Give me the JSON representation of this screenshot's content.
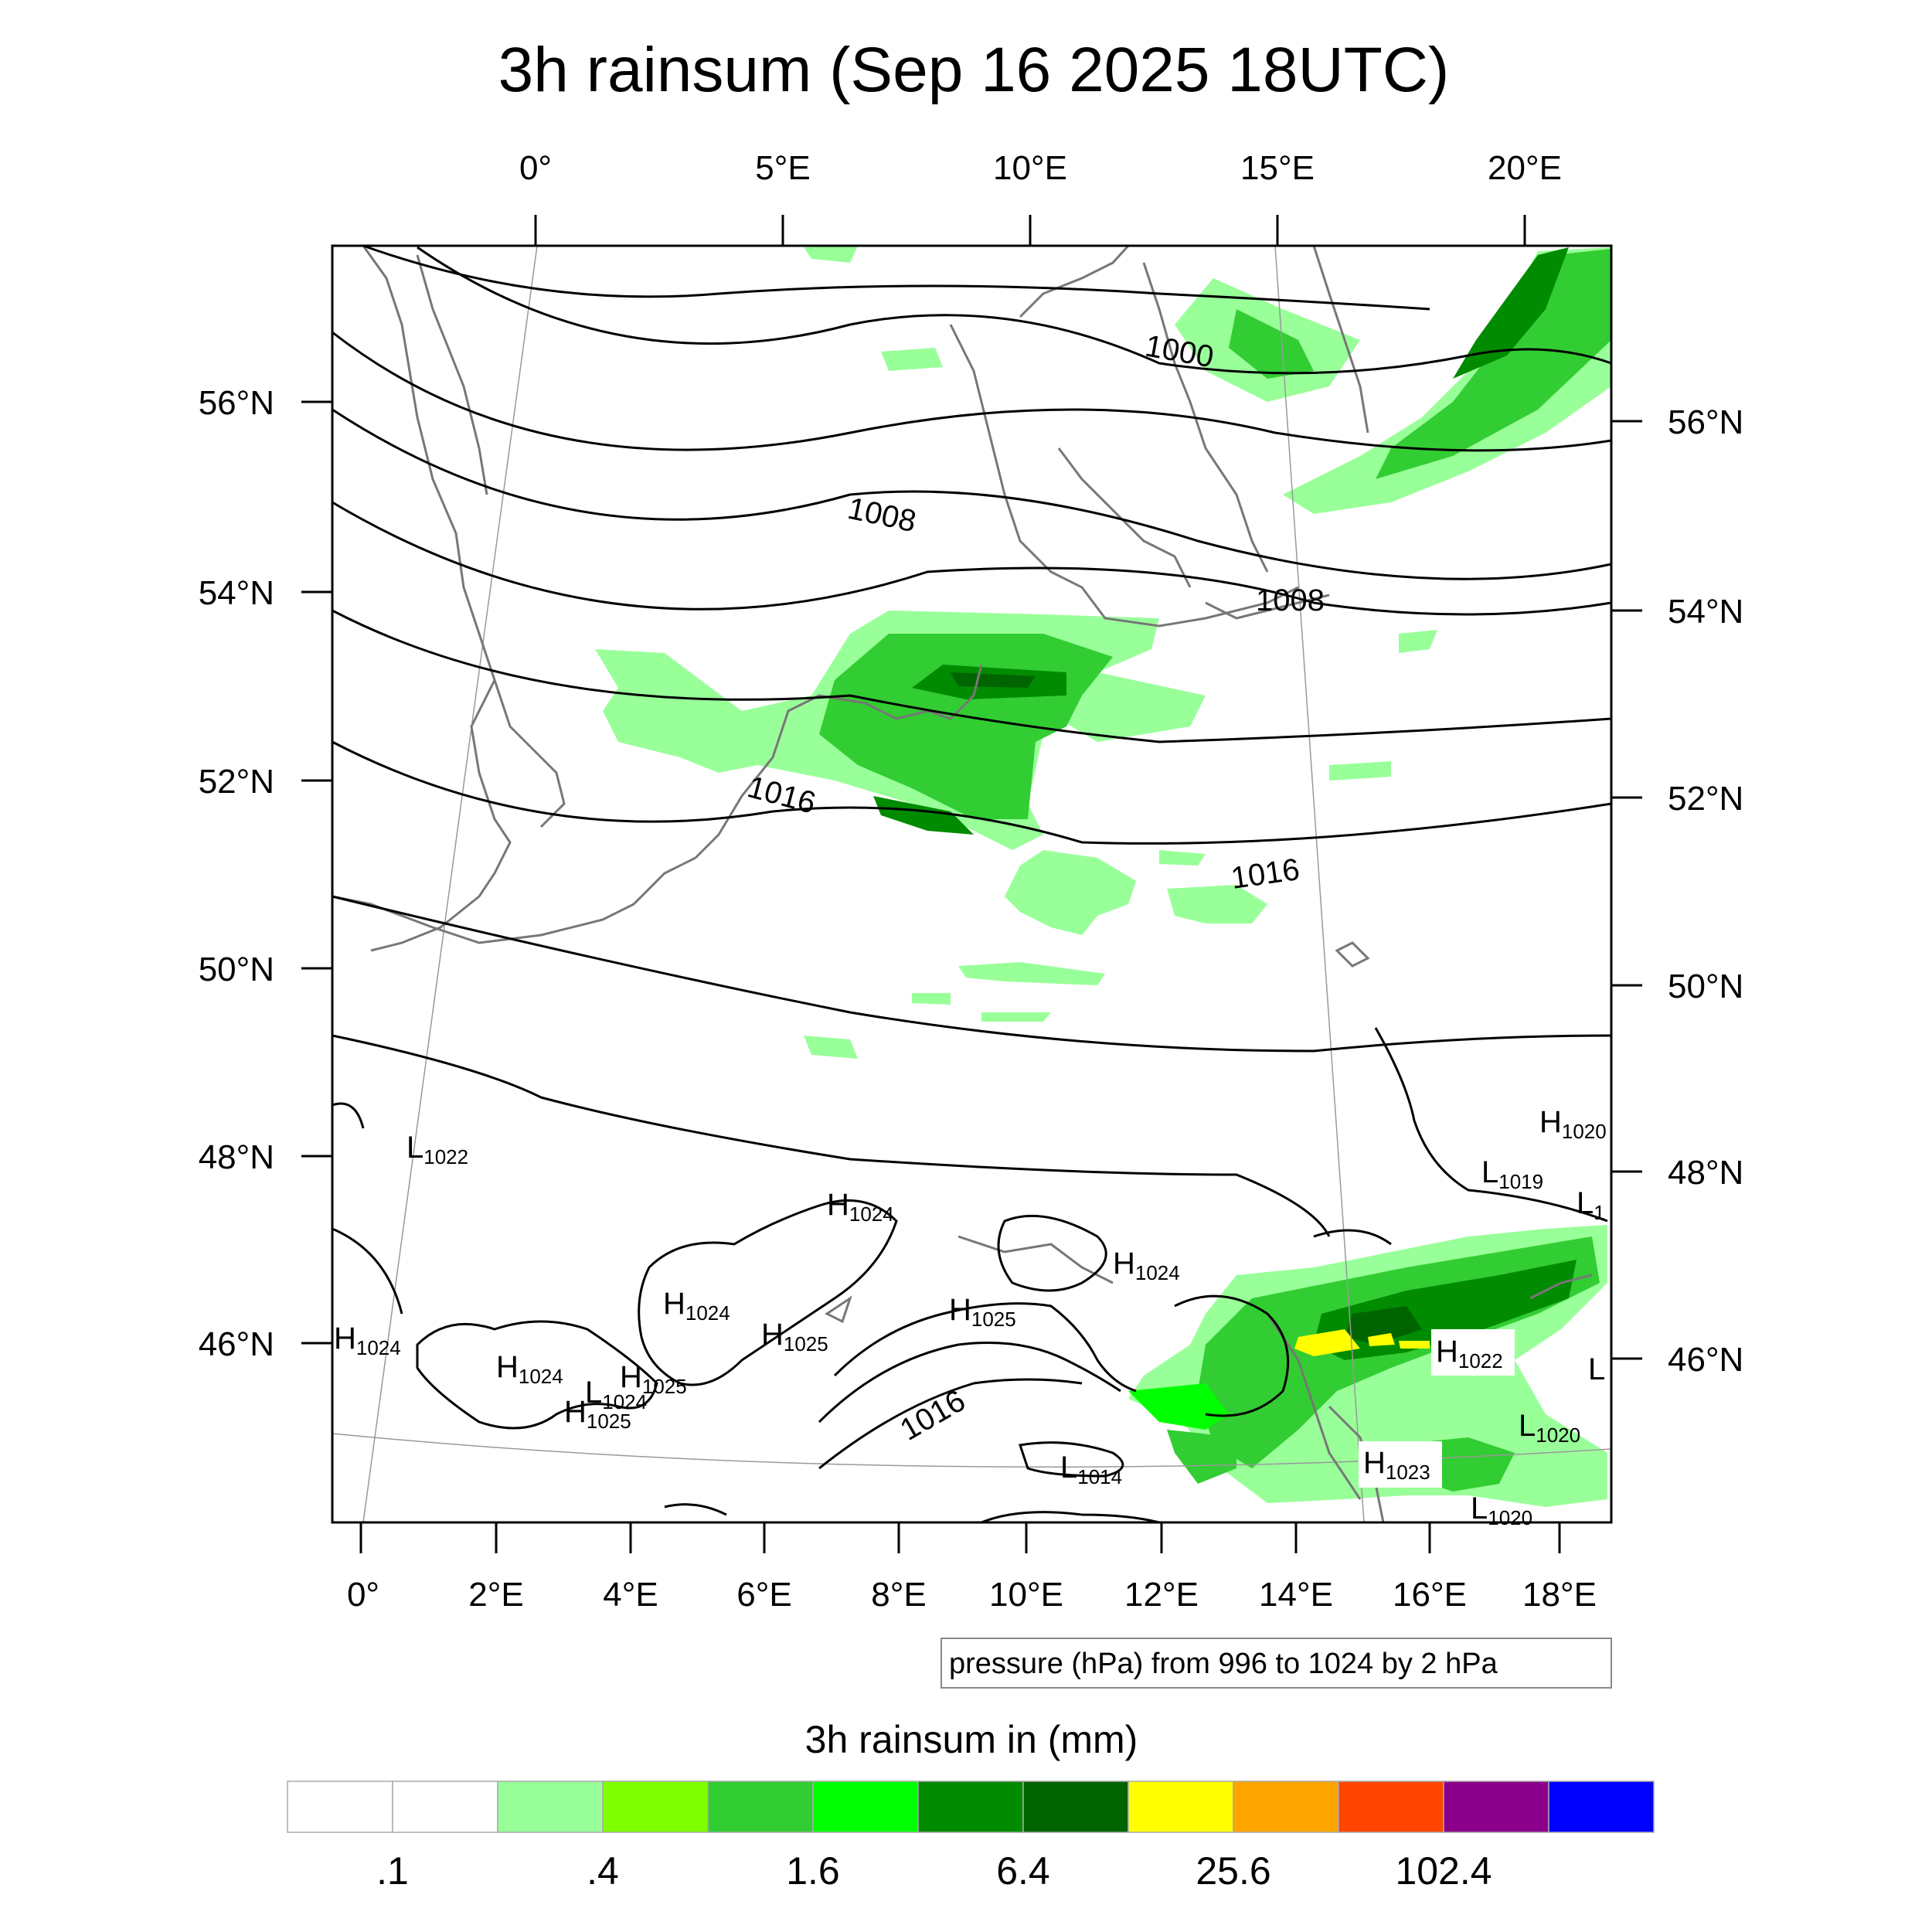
{
  "title": "3h rainsum (Sep 16 2025 18UTC)",
  "top_lon_labels": [
    "0°",
    "5°E",
    "10°E",
    "15°E",
    "20°E"
  ],
  "bottom_lon_labels": [
    "0°",
    "2°E",
    "4°E",
    "6°E",
    "8°E",
    "10°E",
    "12°E",
    "14°E",
    "16°E",
    "18°E"
  ],
  "left_lat_labels": [
    "56°N",
    "54°N",
    "52°N",
    "50°N",
    "48°N",
    "46°N"
  ],
  "right_lat_labels": [
    "56°N",
    "54°N",
    "52°N",
    "50°N",
    "48°N",
    "46°N"
  ],
  "isobar_labels": [
    "1000",
    "1008",
    "1008",
    "1016",
    "1016",
    "1016"
  ],
  "pressure_centers": [
    {
      "t": "L",
      "v": "1022"
    },
    {
      "t": "H",
      "v": "1024"
    },
    {
      "t": "H",
      "v": "1024"
    },
    {
      "t": "H",
      "v": "1025"
    },
    {
      "t": "H",
      "v": "1025"
    },
    {
      "t": "H",
      "v": "1024"
    },
    {
      "t": "H",
      "v": "1024"
    },
    {
      "t": "H",
      "v": "1024"
    },
    {
      "t": "H",
      "v": "1025"
    },
    {
      "t": "L",
      "v": "1024"
    },
    {
      "t": "H",
      "v": "1025"
    },
    {
      "t": "L",
      "v": "1014"
    },
    {
      "t": "H",
      "v": "1022"
    },
    {
      "t": "L",
      "v": "1020"
    },
    {
      "t": "H",
      "v": "1023"
    },
    {
      "t": "L",
      "v": "1020"
    },
    {
      "t": "H",
      "v": "1020"
    },
    {
      "t": "L",
      "v": "1019"
    },
    {
      "t": "L",
      "v": "1"
    },
    {
      "t": "L",
      "v": ""
    }
  ],
  "info_box": "pressure (hPa) from 996 to 1024 by 2 hPa",
  "colorbar": {
    "title": "3h rainsum in (mm)",
    "colors": [
      "#ffffff",
      "#ffffff",
      "#99ff99",
      "#7fff00",
      "#32cd32",
      "#00ff00",
      "#008b00",
      "#006400",
      "#ffff00",
      "#ffa500",
      "#ff4500",
      "#8b008b",
      "#0000ff"
    ],
    "labels": [
      ".1",
      ".4",
      "1.6",
      "6.4",
      "25.6",
      "102.4"
    ]
  }
}
